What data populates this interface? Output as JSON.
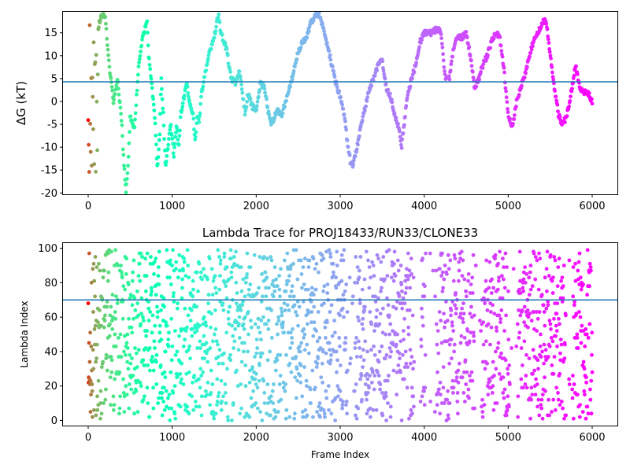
{
  "chart_data": [
    {
      "type": "scatter",
      "title": "",
      "xlabel": "",
      "ylabel": "ΔG (kT)",
      "xlim": [
        -300,
        6300
      ],
      "ylim": [
        -20.3,
        19.6
      ],
      "xticks": [
        0,
        1000,
        2000,
        3000,
        4000,
        5000,
        6000
      ],
      "yticks": [
        -20,
        -15,
        -10,
        -5,
        0,
        5,
        10,
        15
      ],
      "hline": 4.3,
      "hline_color": "#1f77b4",
      "colormap": "rainbow (reversed: red at start, violet at end)",
      "grid": false,
      "n_frames": 6000,
      "trace_keyframes": [
        [
          0,
          17
        ],
        [
          20,
          12
        ],
        [
          40,
          5
        ],
        [
          60,
          -3
        ],
        [
          80,
          3
        ],
        [
          100,
          14
        ],
        [
          150,
          19
        ],
        [
          200,
          19
        ],
        [
          250,
          8
        ],
        [
          300,
          0
        ],
        [
          350,
          5
        ],
        [
          400,
          -5
        ],
        [
          420,
          -12
        ],
        [
          450,
          -20
        ],
        [
          480,
          -12
        ],
        [
          500,
          -3
        ],
        [
          550,
          -6
        ],
        [
          600,
          8
        ],
        [
          650,
          14
        ],
        [
          700,
          18
        ],
        [
          720,
          10
        ],
        [
          760,
          3
        ],
        [
          800,
          -5
        ],
        [
          820,
          -15
        ],
        [
          850,
          -8
        ],
        [
          870,
          5
        ],
        [
          900,
          -5
        ],
        [
          920,
          -14
        ],
        [
          950,
          -10
        ],
        [
          980,
          -5
        ],
        [
          1000,
          -8
        ],
        [
          1020,
          -12
        ],
        [
          1050,
          -5
        ],
        [
          1080,
          -10
        ],
        [
          1100,
          -3
        ],
        [
          1150,
          2
        ],
        [
          1180,
          4
        ],
        [
          1200,
          0
        ],
        [
          1250,
          -3
        ],
        [
          1270,
          -9
        ],
        [
          1300,
          -3
        ],
        [
          1320,
          -5
        ],
        [
          1350,
          2
        ],
        [
          1400,
          7
        ],
        [
          1450,
          11
        ],
        [
          1500,
          14
        ],
        [
          1550,
          19
        ],
        [
          1580,
          15
        ],
        [
          1620,
          13
        ],
        [
          1650,
          11
        ],
        [
          1700,
          5
        ],
        [
          1750,
          4
        ],
        [
          1800,
          7
        ],
        [
          1850,
          0
        ],
        [
          1870,
          -3
        ],
        [
          1900,
          2
        ],
        [
          1950,
          -1
        ],
        [
          2000,
          -2
        ],
        [
          2050,
          4
        ],
        [
          2100,
          3
        ],
        [
          2150,
          -3
        ],
        [
          2180,
          -5
        ],
        [
          2250,
          -2
        ],
        [
          2300,
          -3
        ],
        [
          2350,
          0
        ],
        [
          2400,
          3
        ],
        [
          2450,
          7
        ],
        [
          2500,
          11
        ],
        [
          2550,
          13
        ],
        [
          2600,
          14
        ],
        [
          2650,
          17
        ],
        [
          2700,
          19
        ],
        [
          2750,
          19
        ],
        [
          2800,
          16
        ],
        [
          2850,
          12
        ],
        [
          2900,
          8
        ],
        [
          2950,
          4
        ],
        [
          3000,
          1
        ],
        [
          3050,
          -3
        ],
        [
          3080,
          -8
        ],
        [
          3120,
          -13
        ],
        [
          3150,
          -14
        ],
        [
          3200,
          -10
        ],
        [
          3250,
          -5
        ],
        [
          3300,
          -1
        ],
        [
          3350,
          3
        ],
        [
          3400,
          5
        ],
        [
          3450,
          8
        ],
        [
          3500,
          9
        ],
        [
          3550,
          3
        ],
        [
          3600,
          1
        ],
        [
          3650,
          -3
        ],
        [
          3700,
          -6
        ],
        [
          3730,
          -10
        ],
        [
          3760,
          -5
        ],
        [
          3800,
          1
        ],
        [
          3850,
          5
        ],
        [
          3900,
          8
        ],
        [
          3950,
          13
        ],
        [
          4000,
          15
        ],
        [
          4050,
          15
        ],
        [
          4100,
          15
        ],
        [
          4150,
          16
        ],
        [
          4200,
          15
        ],
        [
          4250,
          5
        ],
        [
          4300,
          5
        ],
        [
          4350,
          12
        ],
        [
          4400,
          14
        ],
        [
          4450,
          14
        ],
        [
          4500,
          15
        ],
        [
          4550,
          10
        ],
        [
          4600,
          3
        ],
        [
          4650,
          5
        ],
        [
          4700,
          8
        ],
        [
          4750,
          10
        ],
        [
          4800,
          13
        ],
        [
          4850,
          15
        ],
        [
          4900,
          14
        ],
        [
          4950,
          7
        ],
        [
          5000,
          -3
        ],
        [
          5050,
          -6
        ],
        [
          5100,
          0
        ],
        [
          5150,
          3
        ],
        [
          5200,
          6
        ],
        [
          5250,
          10
        ],
        [
          5300,
          13
        ],
        [
          5350,
          15
        ],
        [
          5400,
          17
        ],
        [
          5450,
          18
        ],
        [
          5500,
          10
        ],
        [
          5550,
          3
        ],
        [
          5600,
          -3
        ],
        [
          5650,
          -5
        ],
        [
          5700,
          -3
        ],
        [
          5750,
          2
        ],
        [
          5800,
          8
        ],
        [
          5850,
          3
        ],
        [
          5900,
          2
        ],
        [
          5950,
          2
        ],
        [
          6000,
          0
        ]
      ]
    },
    {
      "type": "scatter",
      "title": "Lambda Trace for PROJ18433/RUN33/CLONE33",
      "xlabel": "Frame Index",
      "ylabel": "Lambda Index",
      "xlim": [
        -300,
        6300
      ],
      "ylim": [
        -3,
        103
      ],
      "xticks": [
        0,
        1000,
        2000,
        3000,
        4000,
        5000,
        6000
      ],
      "yticks": [
        0,
        20,
        40,
        60,
        80,
        100
      ],
      "hline": 70,
      "hline_color": "#1f77b4",
      "colormap": "rainbow (reversed: red at start, violet at end)",
      "grid": false,
      "n_frames": 6000,
      "lambda_range": [
        0,
        99
      ],
      "sparse_gaps": [
        [
          3090,
          3170
        ],
        [
          3880,
          3960
        ],
        [
          4020,
          4140
        ],
        [
          4600,
          4680
        ],
        [
          5020,
          5110
        ],
        [
          5690,
          5760
        ]
      ]
    }
  ]
}
